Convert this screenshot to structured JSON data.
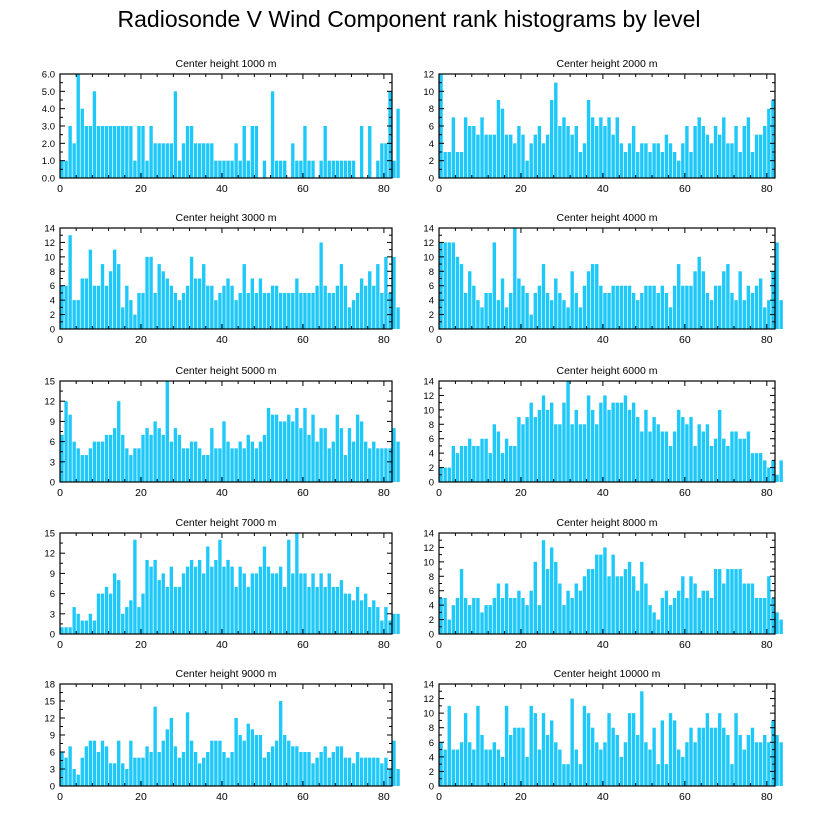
{
  "title": "Radiosonde V Wind Component rank histograms by level",
  "bar_color": "#1EC8F8",
  "chart_data": [
    {
      "type": "bar",
      "title": "Center height 1000 m",
      "xlim": [
        0,
        82
      ],
      "ylim": [
        0,
        6
      ],
      "xticks": [
        0,
        20,
        40,
        60,
        80
      ],
      "yticks": [
        0,
        1,
        2,
        3,
        4,
        5,
        6
      ],
      "ytick_labels": [
        "0.0",
        "1.0",
        "2.0",
        "3.0",
        "4.0",
        "5.0",
        "6.0"
      ],
      "values": [
        1,
        1,
        3,
        2,
        6,
        4,
        3,
        3,
        5,
        3,
        3,
        3,
        3,
        3,
        3,
        3,
        3,
        3,
        1,
        3,
        3,
        1,
        3,
        2,
        2,
        2,
        2,
        2,
        5,
        1,
        2,
        3,
        3,
        2,
        2,
        2,
        2,
        2,
        1,
        1,
        1,
        1,
        1,
        2,
        1,
        3,
        1,
        3,
        3,
        0,
        1,
        0,
        5,
        1,
        1,
        1,
        0,
        2,
        1,
        1,
        3,
        1,
        1,
        0,
        1,
        3,
        1,
        1,
        1,
        1,
        1,
        1,
        1,
        0,
        3,
        0,
        3,
        0,
        1,
        2,
        2,
        5,
        1,
        4
      ]
    },
    {
      "type": "bar",
      "title": "Center height 2000 m",
      "xlim": [
        0,
        82
      ],
      "ylim": [
        0,
        12
      ],
      "xticks": [
        0,
        20,
        40,
        60,
        80
      ],
      "yticks": [
        0,
        2,
        4,
        6,
        8,
        10,
        12
      ],
      "ytick_labels": [
        "0",
        "2",
        "4",
        "6",
        "8",
        "10",
        "12"
      ],
      "values": [
        12,
        3,
        3,
        7,
        3,
        3,
        7,
        6,
        6,
        5,
        7,
        5,
        5,
        5,
        9,
        8,
        5,
        5,
        4,
        6,
        5,
        2,
        4,
        5,
        6,
        4,
        5,
        9,
        11,
        6,
        7,
        6,
        5,
        6,
        3,
        4,
        9,
        7,
        6,
        7,
        6,
        7,
        5,
        7,
        4,
        3,
        4,
        6,
        3,
        4,
        4,
        3,
        4,
        4,
        3,
        5,
        4,
        3,
        2,
        4,
        6,
        3,
        6,
        7,
        6,
        5,
        4,
        6,
        5,
        7,
        4,
        4,
        6,
        3,
        6,
        7,
        3,
        5,
        5,
        6,
        8,
        9
      ]
    },
    {
      "type": "bar",
      "title": "Center height 3000 m",
      "xlim": [
        0,
        82
      ],
      "ylim": [
        0,
        14
      ],
      "xticks": [
        0,
        20,
        40,
        60,
        80
      ],
      "yticks": [
        0,
        2,
        4,
        6,
        8,
        10,
        12,
        14
      ],
      "ytick_labels": [
        "0",
        "2",
        "4",
        "6",
        "8",
        "10",
        "12",
        "14"
      ],
      "values": [
        6,
        6,
        13,
        4,
        4,
        7,
        7,
        11,
        6,
        6,
        9,
        6,
        8,
        11,
        9,
        3,
        6,
        4,
        2,
        5,
        5,
        10,
        10,
        5,
        9,
        8,
        7,
        6,
        5,
        4,
        5,
        6,
        10,
        7,
        7,
        9,
        6,
        6,
        4,
        5,
        6,
        7,
        6,
        4,
        5,
        9,
        5,
        7,
        5,
        7,
        5,
        5,
        6,
        6,
        5,
        5,
        5,
        5,
        7,
        5,
        5,
        5,
        5,
        6,
        12,
        6,
        5,
        5,
        6,
        9,
        6,
        3,
        4,
        5,
        7,
        6,
        8,
        6,
        9,
        5,
        10,
        5,
        10,
        3
      ]
    },
    {
      "type": "bar",
      "title": "Center height 4000 m",
      "xlim": [
        0,
        82
      ],
      "ylim": [
        0,
        14
      ],
      "xticks": [
        0,
        20,
        40,
        60,
        80
      ],
      "yticks": [
        0,
        2,
        4,
        6,
        8,
        10,
        12,
        14
      ],
      "ytick_labels": [
        "0",
        "2",
        "4",
        "6",
        "8",
        "10",
        "12",
        "14"
      ],
      "values": [
        12,
        12,
        12,
        12,
        10,
        9,
        5,
        8,
        6,
        4,
        3,
        5,
        5,
        12,
        4,
        7,
        3,
        5,
        14,
        7,
        6,
        5,
        2,
        5,
        6,
        9,
        5,
        4,
        7,
        5,
        4,
        3,
        8,
        5,
        3,
        6,
        8,
        9,
        9,
        6,
        5,
        5,
        6,
        6,
        6,
        6,
        6,
        5,
        4,
        5,
        6,
        6,
        6,
        5,
        6,
        5,
        3,
        6,
        9,
        6,
        6,
        6,
        8,
        10,
        8,
        5,
        4,
        6,
        6,
        8,
        9,
        5,
        4,
        8,
        4,
        6,
        5,
        6,
        7,
        3,
        4,
        8,
        12,
        4
      ]
    },
    {
      "type": "bar",
      "title": "Center height 5000 m",
      "xlim": [
        0,
        82
      ],
      "ylim": [
        0,
        15
      ],
      "xticks": [
        0,
        20,
        40,
        60,
        80
      ],
      "yticks": [
        0,
        3,
        6,
        9,
        12,
        15
      ],
      "ytick_labels": [
        "0",
        "3",
        "6",
        "9",
        "12",
        "15"
      ],
      "values": [
        7,
        12,
        10,
        6,
        5,
        4,
        4,
        5,
        6,
        6,
        6,
        7,
        7,
        8,
        12,
        7,
        5,
        4,
        5,
        5,
        7,
        8,
        7,
        9,
        8,
        7,
        15,
        6,
        8,
        7,
        5,
        5,
        6,
        6,
        5,
        4,
        4,
        8,
        5,
        5,
        9,
        6,
        5,
        5,
        6,
        5,
        7,
        6,
        5,
        6,
        7,
        11,
        10,
        10,
        9,
        9,
        10,
        9,
        11,
        8,
        11,
        7,
        10,
        6,
        8,
        8,
        5,
        6,
        10,
        8,
        4,
        8,
        6,
        10,
        9,
        6,
        5,
        6,
        5,
        5,
        5,
        5,
        8,
        6
      ]
    },
    {
      "type": "bar",
      "title": "Center height 6000 m",
      "xlim": [
        0,
        82
      ],
      "ylim": [
        0,
        14
      ],
      "xticks": [
        0,
        20,
        40,
        60,
        80
      ],
      "yticks": [
        0,
        2,
        4,
        6,
        8,
        10,
        12,
        14
      ],
      "ytick_labels": [
        "0",
        "2",
        "4",
        "6",
        "8",
        "10",
        "12",
        "14"
      ],
      "values": [
        2,
        2,
        2,
        5,
        4,
        5,
        5,
        6,
        5,
        5,
        6,
        6,
        4,
        8,
        7,
        4,
        6,
        5,
        5,
        9,
        8,
        9,
        11,
        9,
        10,
        12,
        10,
        11,
        8,
        8,
        11,
        14,
        8,
        10,
        8,
        8,
        12,
        10,
        8,
        11,
        12,
        10,
        11,
        11,
        11,
        12,
        10,
        11,
        9,
        7,
        10,
        7,
        9,
        8,
        7,
        7,
        5,
        7,
        10,
        9,
        8,
        9,
        5,
        8,
        7,
        8,
        5,
        6,
        10,
        6,
        5,
        7,
        7,
        6,
        6,
        7,
        4,
        4,
        4,
        3,
        2,
        3,
        1,
        3
      ]
    },
    {
      "type": "bar",
      "title": "Center height 7000 m",
      "xlim": [
        0,
        82
      ],
      "ylim": [
        0,
        15
      ],
      "xticks": [
        0,
        20,
        40,
        60,
        80
      ],
      "yticks": [
        0,
        3,
        6,
        9,
        12,
        15
      ],
      "ytick_labels": [
        "0",
        "3",
        "6",
        "9",
        "12",
        "15"
      ],
      "values": [
        1,
        1,
        1,
        4,
        3,
        2,
        2,
        3,
        2,
        6,
        6,
        7,
        6,
        9,
        8,
        3,
        4,
        5,
        14,
        4,
        6,
        11,
        10,
        11,
        8,
        9,
        7,
        10,
        7,
        7,
        9,
        10,
        11,
        10,
        11,
        9,
        13,
        10,
        11,
        14,
        10,
        11,
        10,
        7,
        10,
        9,
        7,
        9,
        9,
        10,
        13,
        10,
        9,
        9,
        10,
        7,
        14,
        9,
        15,
        9,
        9,
        7,
        9,
        7,
        9,
        7,
        9,
        7,
        7,
        8,
        6,
        6,
        5,
        7,
        5,
        6,
        4,
        5,
        4,
        2,
        4,
        2,
        3,
        3
      ]
    },
    {
      "type": "bar",
      "title": "Center height 8000 m",
      "xlim": [
        0,
        82
      ],
      "ylim": [
        0,
        14
      ],
      "xticks": [
        0,
        20,
        40,
        60,
        80
      ],
      "yticks": [
        0,
        2,
        4,
        6,
        8,
        10,
        12,
        14
      ],
      "ytick_labels": [
        "0",
        "2",
        "4",
        "6",
        "8",
        "10",
        "12",
        "14"
      ],
      "values": [
        5,
        5,
        2,
        4,
        5,
        9,
        5,
        4,
        5,
        5,
        3,
        4,
        4,
        5,
        7,
        5,
        7,
        5,
        5,
        6,
        5,
        4,
        6,
        10,
        4,
        13,
        9,
        12,
        10,
        7,
        4,
        6,
        5,
        7,
        6,
        8,
        9,
        9,
        11,
        11,
        12,
        8,
        11,
        8,
        8,
        9,
        10,
        8,
        6,
        10,
        7,
        4,
        3,
        2,
        5,
        6,
        4,
        5,
        6,
        8,
        5,
        8,
        7,
        5,
        6,
        6,
        5,
        9,
        9,
        7,
        9,
        9,
        9,
        9,
        7,
        7,
        7,
        5,
        5,
        5,
        8,
        5,
        3,
        2
      ]
    },
    {
      "type": "bar",
      "title": "Center height 9000 m",
      "xlim": [
        0,
        82
      ],
      "ylim": [
        0,
        18
      ],
      "xticks": [
        0,
        20,
        40,
        60,
        80
      ],
      "yticks": [
        0,
        3,
        6,
        9,
        12,
        15,
        18
      ],
      "ytick_labels": [
        "0",
        "3",
        "6",
        "9",
        "12",
        "15",
        "18"
      ],
      "values": [
        6,
        5,
        7,
        3,
        2,
        5,
        7,
        8,
        8,
        6,
        8,
        7,
        4,
        4,
        8,
        4,
        3,
        8,
        5,
        5,
        5,
        7,
        6,
        14,
        6,
        8,
        10,
        12,
        7,
        5,
        6,
        13,
        8,
        6,
        4,
        5,
        6,
        8,
        8,
        8,
        6,
        5,
        6,
        12,
        9,
        8,
        11,
        10,
        9,
        9,
        5,
        6,
        7,
        8,
        15,
        9,
        8,
        7,
        7,
        6,
        6,
        6,
        4,
        5,
        6,
        7,
        5,
        6,
        7,
        7,
        5,
        5,
        4,
        6,
        5,
        5,
        5,
        5,
        5,
        4,
        5,
        3,
        8,
        3
      ]
    },
    {
      "type": "bar",
      "title": "Center height 10000 m",
      "xlim": [
        0,
        82
      ],
      "ylim": [
        0,
        14
      ],
      "xticks": [
        0,
        20,
        40,
        60,
        80
      ],
      "yticks": [
        0,
        2,
        4,
        6,
        8,
        10,
        12,
        14
      ],
      "ytick_labels": [
        "0",
        "2",
        "4",
        "6",
        "8",
        "10",
        "12",
        "14"
      ],
      "values": [
        6,
        5,
        11,
        5,
        5,
        6,
        10,
        6,
        5,
        11,
        7,
        5,
        5,
        6,
        5,
        4,
        11,
        7,
        8,
        8,
        8,
        4,
        11,
        10,
        5,
        10,
        7,
        9,
        6,
        5,
        3,
        3,
        12,
        5,
        3,
        11,
        10,
        8,
        6,
        5,
        6,
        10,
        8,
        7,
        4,
        6,
        10,
        10,
        7,
        13,
        6,
        5,
        8,
        3,
        9,
        3,
        10,
        9,
        5,
        4,
        6,
        8,
        6,
        8,
        8,
        10,
        8,
        8,
        10,
        8,
        7,
        3,
        10,
        7,
        5,
        7,
        8,
        6,
        6,
        7,
        6,
        9,
        7,
        6
      ]
    }
  ]
}
